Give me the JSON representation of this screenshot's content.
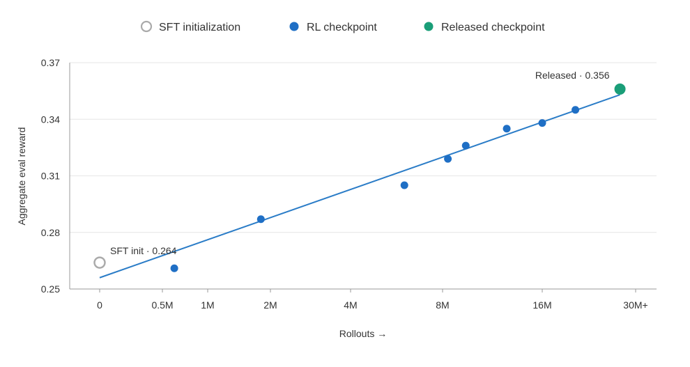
{
  "chart_data": {
    "type": "scatter",
    "xlabel": "Rollouts →",
    "ylabel": "Aggregate eval reward",
    "x_ticks": [
      "0",
      "0.5M",
      "1M",
      "2M",
      "4M",
      "8M",
      "16M",
      "30M+"
    ],
    "y_ticks": [
      0.25,
      0.28,
      0.31,
      0.34,
      0.37
    ],
    "ylim": [
      0.25,
      0.37
    ],
    "grid": true,
    "legend_position": "top-center",
    "legend": [
      {
        "label": "SFT initialization",
        "marker": "hollow-circle",
        "color": "#aaaaaa"
      },
      {
        "label": "RL checkpoint",
        "marker": "filled-circle",
        "color": "#1f6fc5"
      },
      {
        "label": "Released checkpoint",
        "marker": "filled-circle",
        "color": "#1a9e78"
      }
    ],
    "series": [
      {
        "name": "SFT initialization",
        "points": [
          {
            "x": "0",
            "y": 0.264
          }
        ]
      },
      {
        "name": "RL checkpoint",
        "points": [
          {
            "x": "0.6M",
            "y": 0.261
          },
          {
            "x": "1.8M",
            "y": 0.287
          },
          {
            "x": "6M",
            "y": 0.305
          },
          {
            "x": "8.3M",
            "y": 0.319
          },
          {
            "x": "9.4M",
            "y": 0.326
          },
          {
            "x": "12.5M",
            "y": 0.335
          },
          {
            "x": "16M",
            "y": 0.338
          },
          {
            "x": "20M",
            "y": 0.345
          }
        ]
      },
      {
        "name": "Released checkpoint",
        "points": [
          {
            "x": "27M",
            "y": 0.356
          }
        ]
      }
    ],
    "trend_line": {
      "from": {
        "x": "0",
        "y": 0.256
      },
      "to": {
        "x": "27M",
        "y": 0.353
      },
      "color": "#2a7cc7"
    },
    "annotations": [
      {
        "text": "SFT init · 0.264",
        "target": "SFT initialization"
      },
      {
        "text": "Released · 0.356",
        "target": "Released checkpoint"
      }
    ],
    "colors": {
      "grid": "#e6e6e6",
      "axis": "#999999",
      "text": "#333333"
    }
  }
}
